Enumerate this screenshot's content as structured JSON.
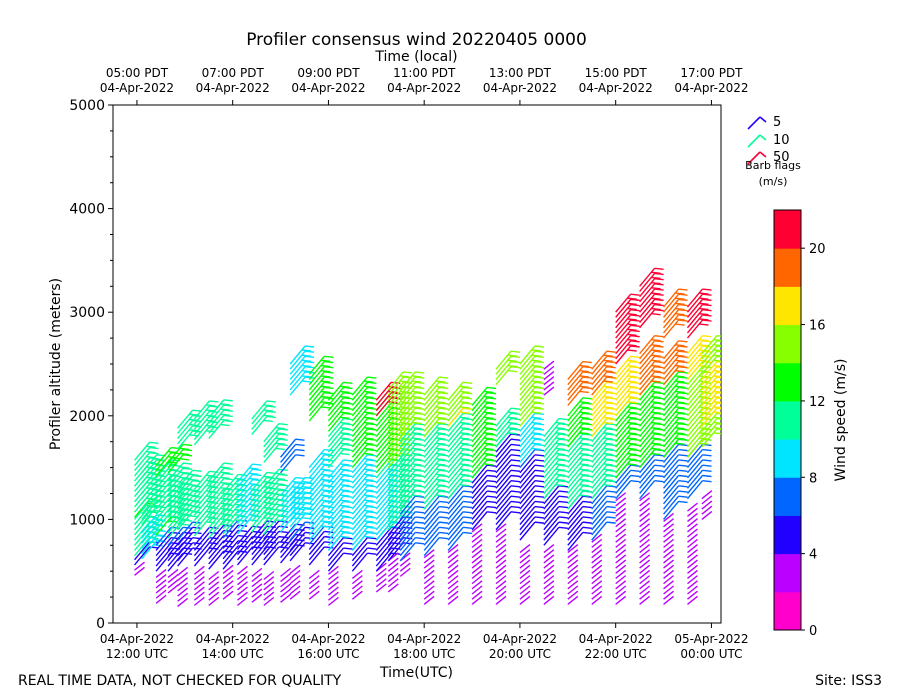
{
  "chart_data": {
    "type": "scatter",
    "subtype": "wind-barb",
    "title": "Profiler consensus wind 20220405 0000",
    "xlabel": "Time(UTC)",
    "xlabel_top": "Time (local)",
    "ylabel": "Profiler altitude (meters)",
    "colorbar_label": "Wind speed (m/s)",
    "xlim_hours_utc": [
      11.5,
      24.2
    ],
    "ylim": [
      0,
      5000
    ],
    "y_ticks": [
      "0",
      "1000",
      "2000",
      "3000",
      "4000",
      "5000"
    ],
    "x_ticks_bottom": [
      {
        "hour": 12,
        "line1": "04-Apr-2022",
        "line2": "12:00 UTC"
      },
      {
        "hour": 14,
        "line1": "04-Apr-2022",
        "line2": "14:00 UTC"
      },
      {
        "hour": 16,
        "line1": "04-Apr-2022",
        "line2": "16:00 UTC"
      },
      {
        "hour": 18,
        "line1": "04-Apr-2022",
        "line2": "18:00 UTC"
      },
      {
        "hour": 20,
        "line1": "04-Apr-2022",
        "line2": "20:00 UTC"
      },
      {
        "hour": 22,
        "line1": "04-Apr-2022",
        "line2": "22:00 UTC"
      },
      {
        "hour": 24,
        "line1": "05-Apr-2022",
        "line2": "00:00 UTC"
      }
    ],
    "x_ticks_top": [
      {
        "hour": 12,
        "line1": "05:00 PDT",
        "line2": "04-Apr-2022"
      },
      {
        "hour": 14,
        "line1": "07:00 PDT",
        "line2": "04-Apr-2022"
      },
      {
        "hour": 16,
        "line1": "09:00 PDT",
        "line2": "04-Apr-2022"
      },
      {
        "hour": 18,
        "line1": "11:00 PDT",
        "line2": "04-Apr-2022"
      },
      {
        "hour": 20,
        "line1": "13:00 PDT",
        "line2": "04-Apr-2022"
      },
      {
        "hour": 22,
        "line1": "15:00 PDT",
        "line2": "04-Apr-2022"
      },
      {
        "hour": 24,
        "line1": "17:00 PDT",
        "line2": "04-Apr-2022"
      }
    ],
    "legend": {
      "title_line1": "Barb flags",
      "title_line2": "(m/s)",
      "entries": [
        {
          "label": "5",
          "color": "#2200ff"
        },
        {
          "label": "10",
          "color": "#00ff99"
        },
        {
          "label": "50",
          "color": "#ff0033"
        }
      ]
    },
    "colorbar": {
      "min": 0,
      "max": 22,
      "ticks": [
        "0",
        "4",
        "8",
        "12",
        "16",
        "20"
      ],
      "colors": [
        "#ff00cc",
        "#bb00ff",
        "#2200ff",
        "#0066ff",
        "#00e5ff",
        "#00ff99",
        "#00ff00",
        "#88ff00",
        "#ffe600",
        "#ff6600",
        "#ff0033"
      ]
    },
    "columns": [
      {
        "hour": 11.95,
        "segments": [
          [
            460,
            620,
            3,
            5
          ],
          [
            650,
            1000,
            10,
            10
          ],
          [
            1020,
            1580,
            12,
            11
          ]
        ]
      },
      {
        "hour": 12.1,
        "segments": [
          [
            620,
            900,
            8,
            8
          ],
          [
            950,
            1480,
            11,
            12
          ]
        ]
      },
      {
        "hour": 12.4,
        "segments": [
          [
            190,
            480,
            3,
            4
          ],
          [
            500,
            750,
            5,
            6
          ],
          [
            850,
            1400,
            12,
            11
          ],
          [
            1420,
            1560,
            13,
            12
          ]
        ]
      },
      {
        "hour": 12.65,
        "segments": [
          [
            290,
            480,
            3,
            4
          ],
          [
            500,
            750,
            5,
            6
          ],
          [
            820,
            1400,
            11,
            11
          ],
          [
            1450,
            1560,
            13,
            12
          ]
        ]
      },
      {
        "hour": 12.85,
        "segments": [
          [
            160,
            480,
            2,
            3
          ],
          [
            550,
            800,
            5,
            6
          ],
          [
            900,
            1320,
            11,
            11
          ],
          [
            1680,
            1920,
            11,
            11
          ]
        ]
      },
      {
        "hour": 13.2,
        "segments": [
          [
            170,
            500,
            2,
            3
          ],
          [
            550,
            780,
            5,
            6
          ],
          [
            840,
            1300,
            11,
            11
          ],
          [
            1720,
            2000,
            11,
            11
          ]
        ]
      },
      {
        "hour": 13.5,
        "segments": [
          [
            170,
            450,
            2,
            3
          ],
          [
            520,
            780,
            5,
            6
          ],
          [
            820,
            1400,
            10,
            10
          ],
          [
            1780,
            2020,
            11,
            11
          ]
        ]
      },
      {
        "hour": 13.8,
        "segments": [
          [
            230,
            500,
            2,
            3
          ],
          [
            520,
            820,
            5,
            6
          ],
          [
            860,
            1300,
            11,
            11
          ]
        ]
      },
      {
        "hour": 14.1,
        "segments": [
          [
            170,
            480,
            2,
            3
          ],
          [
            560,
            800,
            5,
            6
          ],
          [
            860,
            1400,
            9,
            9
          ]
        ]
      },
      {
        "hour": 14.4,
        "segments": [
          [
            200,
            450,
            2,
            3
          ],
          [
            560,
            850,
            5,
            6
          ],
          [
            880,
            1300,
            10,
            10
          ],
          [
            1820,
            2000,
            11,
            11
          ]
        ]
      },
      {
        "hour": 14.65,
        "segments": [
          [
            170,
            450,
            2,
            3
          ],
          [
            560,
            850,
            5,
            6
          ],
          [
            860,
            1320,
            10,
            10
          ],
          [
            1550,
            1760,
            11,
            11
          ]
        ]
      },
      {
        "hour": 15.0,
        "segments": [
          [
            200,
            480,
            2,
            3
          ],
          [
            580,
            800,
            5,
            6
          ],
          [
            880,
            1270,
            9,
            9
          ],
          [
            1450,
            1620,
            6,
            6
          ]
        ]
      },
      {
        "hour": 15.2,
        "segments": [
          [
            230,
            500,
            2,
            3
          ],
          [
            600,
            800,
            5,
            6
          ],
          [
            880,
            1270,
            9,
            9
          ],
          [
            2200,
            2540,
            9,
            9
          ]
        ]
      },
      {
        "hour": 15.6,
        "segments": [
          [
            230,
            450,
            2,
            3
          ],
          [
            560,
            760,
            5,
            6
          ],
          [
            800,
            1250,
            9,
            9
          ],
          [
            1300,
            1500,
            8,
            8
          ],
          [
            1950,
            2400,
            13,
            12
          ]
        ]
      },
      {
        "hour": 16.0,
        "segments": [
          [
            170,
            500,
            2,
            3
          ],
          [
            500,
            700,
            5,
            6
          ],
          [
            700,
            1400,
            9,
            9
          ],
          [
            1500,
            1850,
            11,
            12
          ],
          [
            1900,
            2180,
            13,
            12
          ]
        ]
      },
      {
        "hour": 16.5,
        "segments": [
          [
            230,
            450,
            2,
            3
          ],
          [
            500,
            700,
            5,
            6
          ],
          [
            700,
            1450,
            9,
            9
          ],
          [
            1500,
            2200,
            12,
            13
          ]
        ]
      },
      {
        "hour": 17.0,
        "segments": [
          [
            300,
            500,
            2,
            3
          ],
          [
            500,
            800,
            5,
            6
          ],
          [
            800,
            1400,
            9,
            10
          ],
          [
            1450,
            2100,
            13,
            13
          ],
          [
            2000,
            2160,
            20,
            21
          ]
        ]
      },
      {
        "hour": 17.25,
        "segments": [
          [
            300,
            600,
            2,
            3
          ],
          [
            600,
            900,
            5,
            6
          ],
          [
            900,
            1500,
            11,
            11
          ],
          [
            1500,
            2250,
            14,
            14
          ]
        ]
      },
      {
        "hour": 17.5,
        "segments": [
          [
            450,
            600,
            2,
            3
          ],
          [
            600,
            1100,
            6,
            6
          ],
          [
            1100,
            1800,
            11,
            12
          ],
          [
            1800,
            2250,
            15,
            15
          ]
        ]
      },
      {
        "hour": 18.0,
        "segments": [
          [
            180,
            650,
            3,
            3
          ],
          [
            650,
            1100,
            6,
            6
          ],
          [
            1100,
            1800,
            11,
            12
          ],
          [
            1800,
            2200,
            15,
            15
          ]
        ]
      },
      {
        "hour": 18.5,
        "segments": [
          [
            180,
            700,
            3,
            3
          ],
          [
            700,
            1200,
            6,
            6
          ],
          [
            1200,
            1900,
            11,
            12
          ],
          [
            1900,
            2150,
            16,
            15
          ]
        ]
      },
      {
        "hour": 19.0,
        "segments": [
          [
            180,
            900,
            3,
            3
          ],
          [
            900,
            1400,
            5,
            6
          ],
          [
            1400,
            2100,
            12,
            13
          ]
        ]
      },
      {
        "hour": 19.5,
        "segments": [
          [
            180,
            900,
            3,
            3
          ],
          [
            900,
            1700,
            5,
            6
          ],
          [
            1700,
            1900,
            11,
            11
          ],
          [
            2300,
            2480,
            15,
            15
          ]
        ]
      },
      {
        "hour": 20.0,
        "segments": [
          [
            180,
            700,
            2,
            3
          ],
          [
            800,
            1500,
            5,
            6
          ],
          [
            1550,
            1850,
            9,
            9
          ],
          [
            1900,
            2500,
            14,
            14
          ]
        ]
      },
      {
        "hour": 20.5,
        "segments": [
          [
            180,
            700,
            2,
            3
          ],
          [
            750,
            1200,
            5,
            6
          ],
          [
            1200,
            1800,
            10,
            10
          ],
          [
            2200,
            2480,
            2,
            3
          ]
        ]
      },
      {
        "hour": 21.0,
        "segments": [
          [
            180,
            700,
            2,
            3
          ],
          [
            700,
            1100,
            5,
            6
          ],
          [
            1100,
            1700,
            10,
            11
          ],
          [
            1700,
            2000,
            13,
            13
          ],
          [
            2100,
            2380,
            19,
            19
          ]
        ]
      },
      {
        "hour": 21.5,
        "segments": [
          [
            180,
            800,
            2,
            3
          ],
          [
            800,
            1200,
            7,
            7
          ],
          [
            1200,
            1800,
            11,
            12
          ],
          [
            1800,
            2200,
            16,
            16
          ],
          [
            2200,
            2480,
            19,
            20
          ]
        ]
      },
      {
        "hour": 22.0,
        "segments": [
          [
            180,
            1200,
            2,
            3
          ],
          [
            1200,
            1400,
            6,
            6
          ],
          [
            1400,
            2000,
            12,
            13
          ],
          [
            2000,
            2430,
            17,
            17
          ],
          [
            2500,
            3000,
            21,
            21
          ]
        ]
      },
      {
        "hour": 22.5,
        "segments": [
          [
            180,
            1200,
            2,
            3
          ],
          [
            1200,
            1500,
            6,
            6
          ],
          [
            1500,
            2200,
            13,
            14
          ],
          [
            2200,
            2600,
            18,
            19
          ],
          [
            2850,
            3250,
            21,
            21
          ]
        ]
      },
      {
        "hour": 23.0,
        "segments": [
          [
            180,
            1000,
            2,
            3
          ],
          [
            1000,
            1600,
            6,
            6
          ],
          [
            1600,
            2300,
            13,
            14
          ],
          [
            2300,
            2550,
            18,
            18
          ],
          [
            2750,
            3050,
            19,
            19
          ]
        ]
      },
      {
        "hour": 23.5,
        "segments": [
          [
            180,
            1100,
            2,
            3
          ],
          [
            1200,
            1600,
            7,
            7
          ],
          [
            1600,
            2350,
            14,
            14
          ],
          [
            2350,
            2600,
            17,
            17
          ],
          [
            2750,
            3050,
            20,
            21
          ]
        ]
      },
      {
        "hour": 23.8,
        "segments": [
          [
            1000,
            1200,
            3,
            3
          ],
          [
            1700,
            2300,
            14,
            14
          ],
          [
            1900,
            2400,
            16,
            17
          ],
          [
            2400,
            2630,
            15,
            15
          ]
        ]
      }
    ]
  },
  "footer": {
    "left": "REAL TIME DATA, NOT CHECKED FOR QUALITY",
    "right": "Site: ISS3"
  }
}
